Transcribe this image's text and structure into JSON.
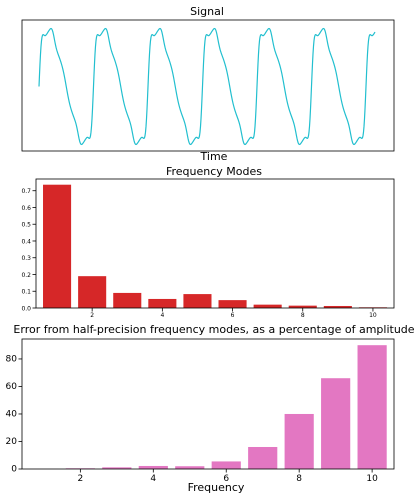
{
  "chart_data": [
    {
      "type": "line",
      "title": "Signal",
      "xlabel": "Time",
      "ylabel": "",
      "axes_ticks": "hidden",
      "color": "#22bfcf",
      "series": [
        {
          "period_fraction": 0.1465,
          "cycles_shown": 6,
          "start_value": 0.0,
          "waveform_harmonics": [
            {
              "k": 1,
              "amp": 0.736
            },
            {
              "k": 2,
              "amp": 0.19
            },
            {
              "k": 3,
              "amp": 0.09
            },
            {
              "k": 4,
              "amp": 0.054
            },
            {
              "k": 5,
              "amp": 0.083
            },
            {
              "k": 6,
              "amp": 0.047
            },
            {
              "k": 7,
              "amp": 0.02
            },
            {
              "k": 8,
              "amp": 0.014
            },
            {
              "k": 9,
              "amp": 0.012
            },
            {
              "k": 10,
              "amp": 0.004
            }
          ]
        }
      ]
    },
    {
      "type": "bar",
      "title": "Frequency Modes",
      "xlabel": "",
      "ylabel": "",
      "color": "#d62728",
      "x": [
        1,
        2,
        3,
        4,
        5,
        6,
        7,
        8,
        9,
        10
      ],
      "values": [
        0.736,
        0.19,
        0.09,
        0.054,
        0.083,
        0.047,
        0.02,
        0.014,
        0.012,
        0.004
      ],
      "xticks": [
        "2",
        "4",
        "6",
        "8",
        "10"
      ],
      "yticks": [
        "0.0",
        "0.1",
        "0.2",
        "0.3",
        "0.4",
        "0.5",
        "0.6",
        "0.7"
      ],
      "ylim": [
        0,
        0.77
      ],
      "xlim": [
        0.4,
        10.6
      ]
    },
    {
      "type": "bar",
      "title": "Error from half-precision frequency modes, as a percentage of amplitude",
      "xlabel": "Frequency",
      "ylabel": "",
      "color": "#e377c2",
      "x": [
        1,
        2,
        3,
        4,
        5,
        6,
        7,
        8,
        9,
        10
      ],
      "values": [
        0.05,
        0.5,
        1.2,
        2.2,
        2.0,
        5.5,
        16,
        40,
        66,
        90
      ],
      "xticks": [
        "2",
        "4",
        "6",
        "8",
        "10"
      ],
      "yticks": [
        "0",
        "20",
        "40",
        "60",
        "80"
      ],
      "ylim": [
        0,
        94.5
      ],
      "xlim": [
        0.4,
        10.6
      ]
    }
  ]
}
